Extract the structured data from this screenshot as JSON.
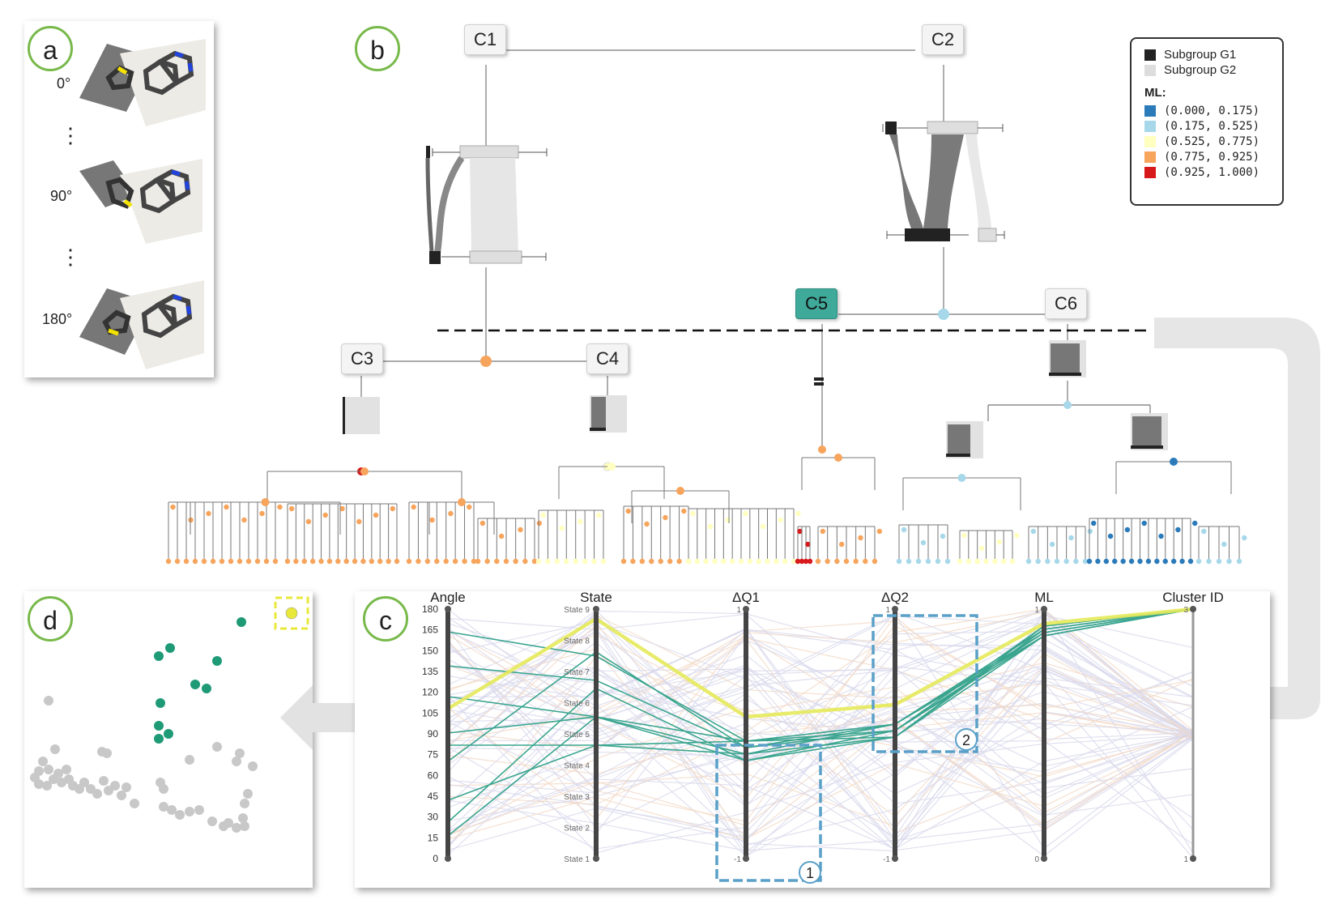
{
  "panels": {
    "a": {
      "label": "a",
      "angles": [
        "0°",
        "90°",
        "180°"
      ]
    },
    "b": {
      "label": "b"
    },
    "c": {
      "label": "c"
    },
    "d": {
      "label": "d"
    }
  },
  "tree": {
    "nodes": [
      "C1",
      "C2",
      "C3",
      "C4",
      "C5",
      "C6"
    ],
    "selected": "C5"
  },
  "legend": {
    "subgroups": [
      {
        "label": "Subgroup G1",
        "color": "#222222"
      },
      {
        "label": "Subgroup G2",
        "color": "#dddddd"
      }
    ],
    "ml_title": "ML:",
    "ml_bins": [
      {
        "label": "(0.000, 0.175)",
        "color": "#2b7bba"
      },
      {
        "label": "(0.175, 0.525)",
        "color": "#a6d8ea"
      },
      {
        "label": "(0.525, 0.775)",
        "color": "#ffffbf"
      },
      {
        "label": "(0.775, 0.925)",
        "color": "#f7a45c"
      },
      {
        "label": "(0.925, 1.000)",
        "color": "#d7191c"
      }
    ]
  },
  "parallel": {
    "axes": [
      "Angle",
      "State",
      "ΔQ1",
      "ΔQ2",
      "ML",
      "Cluster ID"
    ],
    "angle_ticks": [
      "180",
      "165",
      "150",
      "135",
      "120",
      "105",
      "90",
      "75",
      "60",
      "45",
      "30",
      "15",
      "0"
    ],
    "state_ticks": [
      "State 9",
      "State 8",
      "State 7",
      "State 6",
      "State 5",
      "State 4",
      "State 3",
      "State 2",
      "State 1"
    ],
    "dq1_range": [
      "1",
      "-1"
    ],
    "dq2_range": [
      "1",
      "-1"
    ],
    "ml_range": [
      "1",
      "0"
    ],
    "cluster_range": [
      "3",
      "1"
    ],
    "brush_labels": [
      "1",
      "2"
    ],
    "colors": {
      "highlight": "#e6ea5a",
      "cluster": "#3aa58f",
      "context_a": "#d8d8ec",
      "context_b": "#f3d8c4",
      "brush": "#5aa0c8"
    }
  },
  "scatter": {
    "selected_color": "#1f9a76",
    "other_color": "#c8c8c8",
    "marker_color": "#e8e83a"
  }
}
